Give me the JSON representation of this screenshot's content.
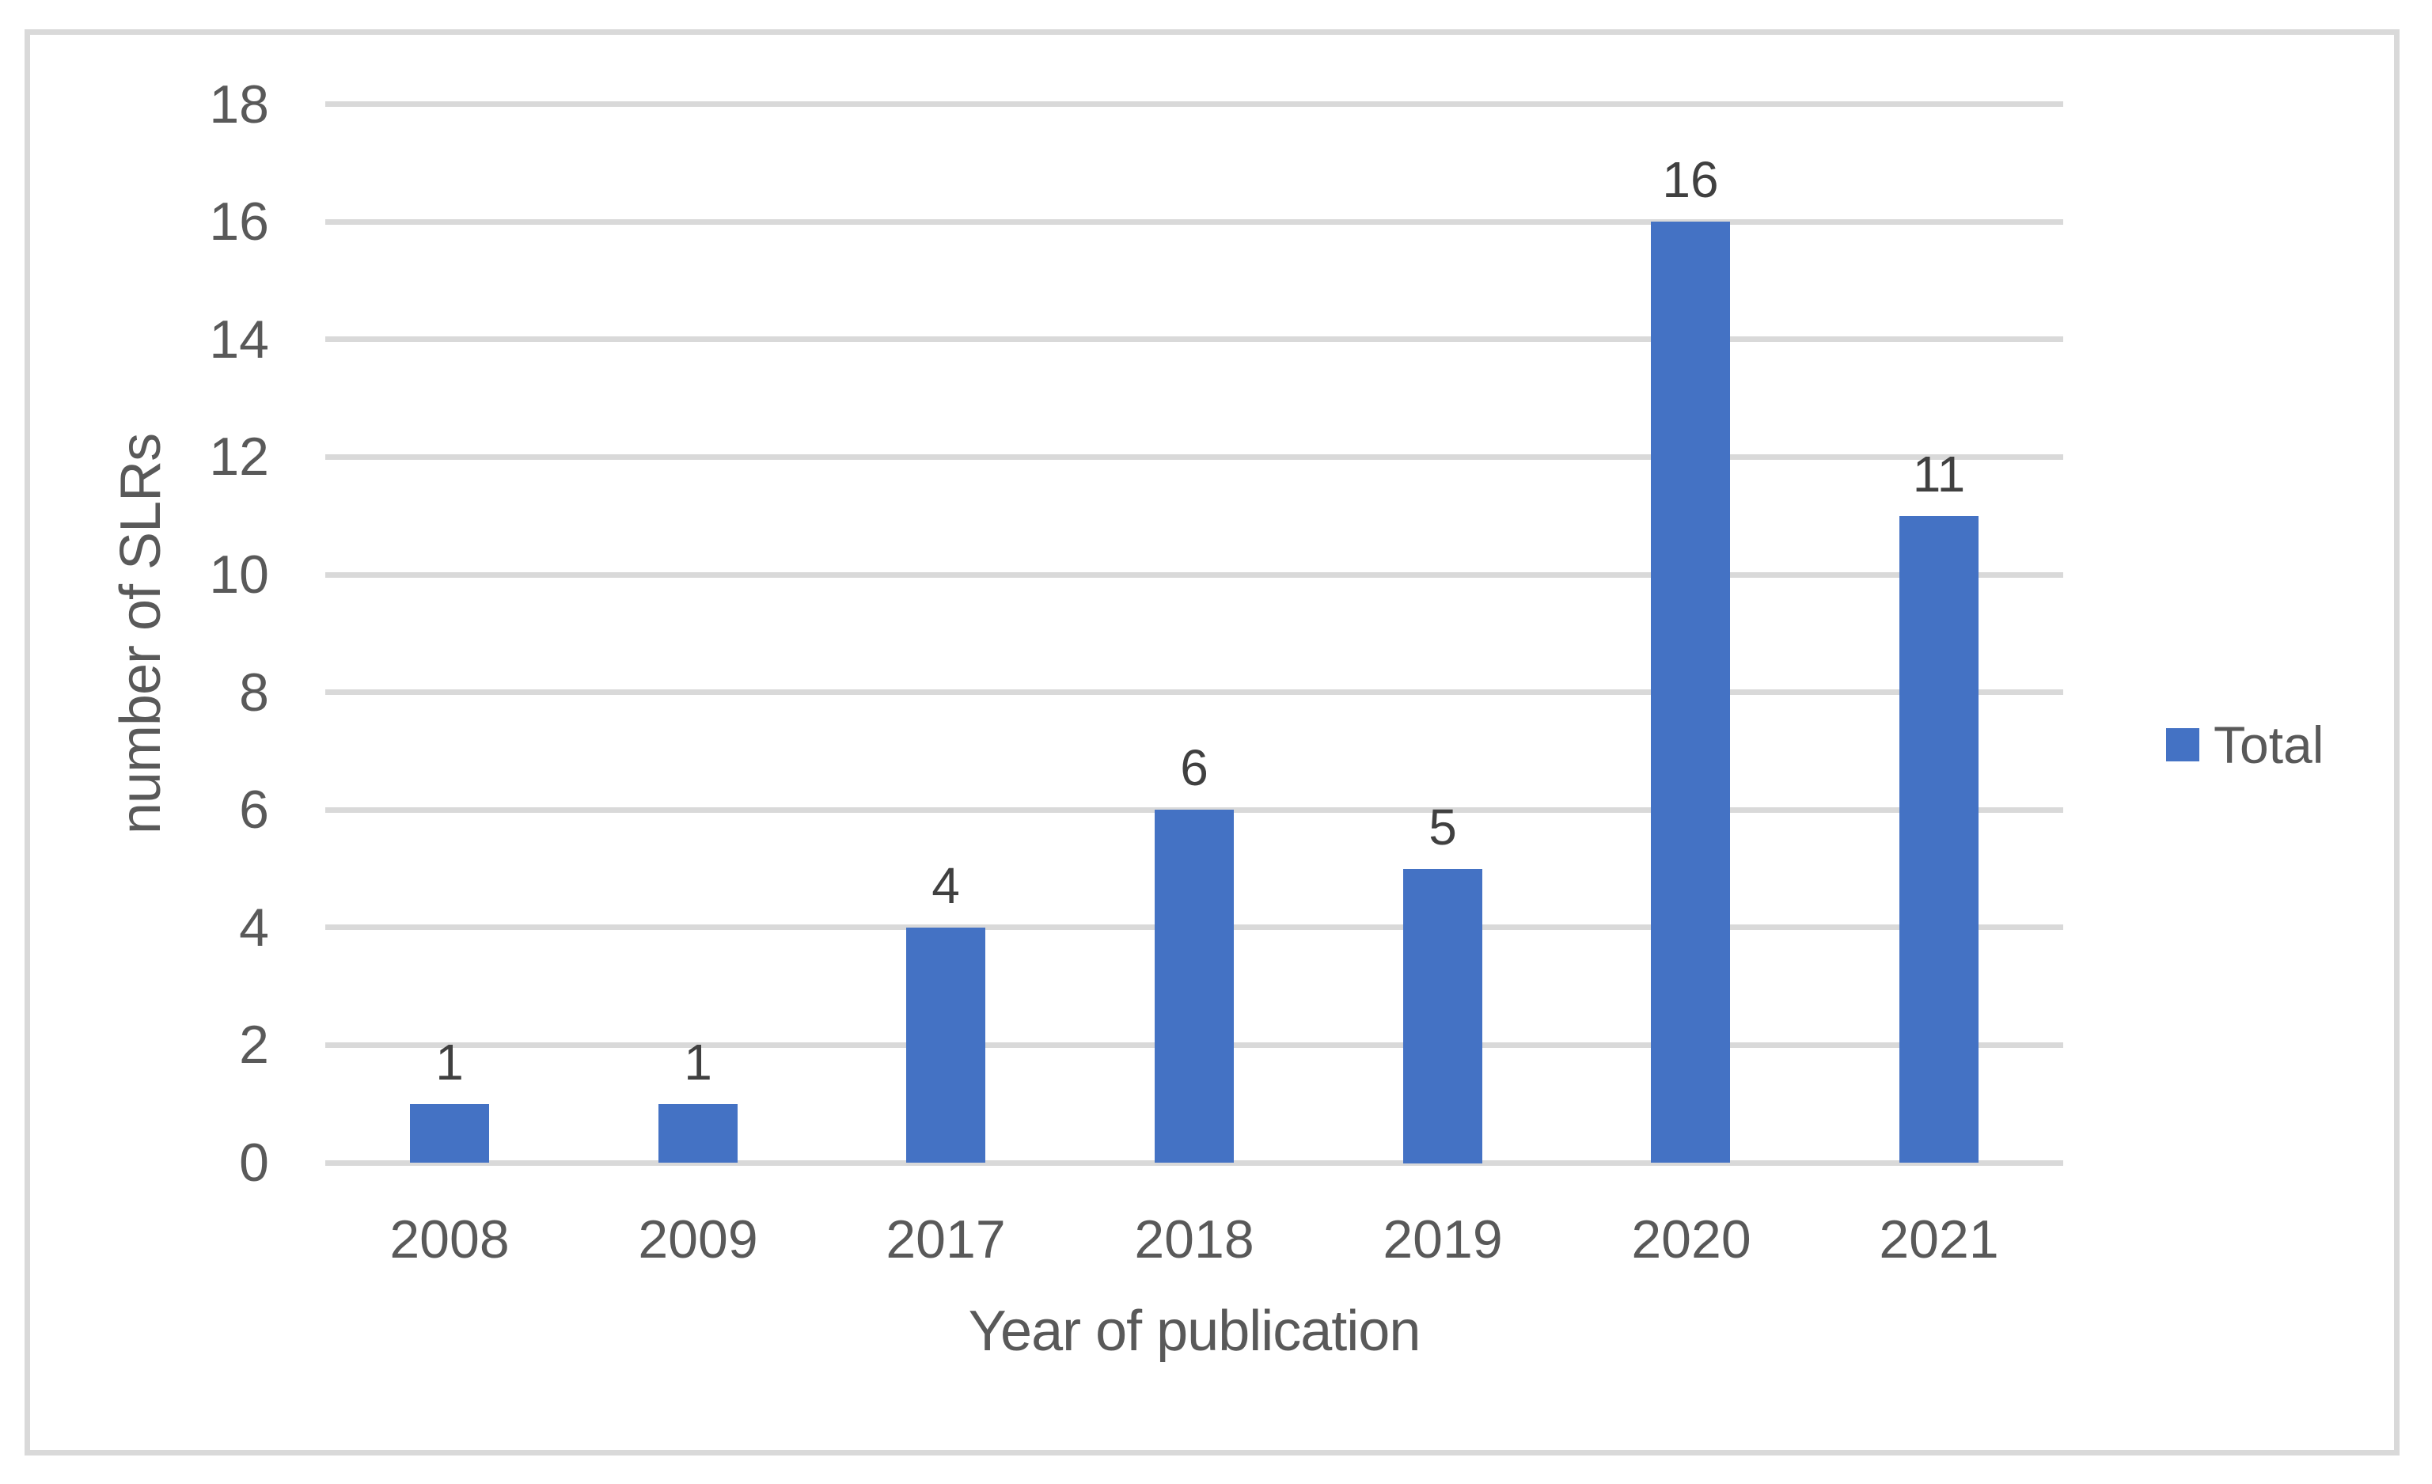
{
  "chart_data": {
    "type": "bar",
    "categories": [
      "2008",
      "2009",
      "2017",
      "2018",
      "2019",
      "2020",
      "2021"
    ],
    "values": [
      1,
      1,
      4,
      6,
      5,
      16,
      11
    ],
    "series": [
      {
        "name": "Total",
        "values": [
          1,
          1,
          4,
          6,
          5,
          16,
          11
        ]
      }
    ],
    "title": "",
    "xlabel": "Year of publication",
    "ylabel": "number of SLRs",
    "ylim": [
      0,
      18
    ],
    "ytick_step": 2,
    "yticks": [
      "0",
      "2",
      "4",
      "6",
      "8",
      "10",
      "12",
      "14",
      "16",
      "18"
    ],
    "data_labels": [
      "1",
      "1",
      "4",
      "6",
      "5",
      "16",
      "11"
    ],
    "legend": {
      "position": "right",
      "entries": [
        "Total"
      ]
    },
    "grid": true,
    "show_data_labels": true,
    "colors": {
      "bar": "#4472C4",
      "gridline": "#D9D9D9",
      "axis_line": "#D9D9D9",
      "border": "#D9D9D9",
      "axis_text": "#595959",
      "data_label_text": "#404040",
      "background": "#FFFFFF"
    }
  }
}
